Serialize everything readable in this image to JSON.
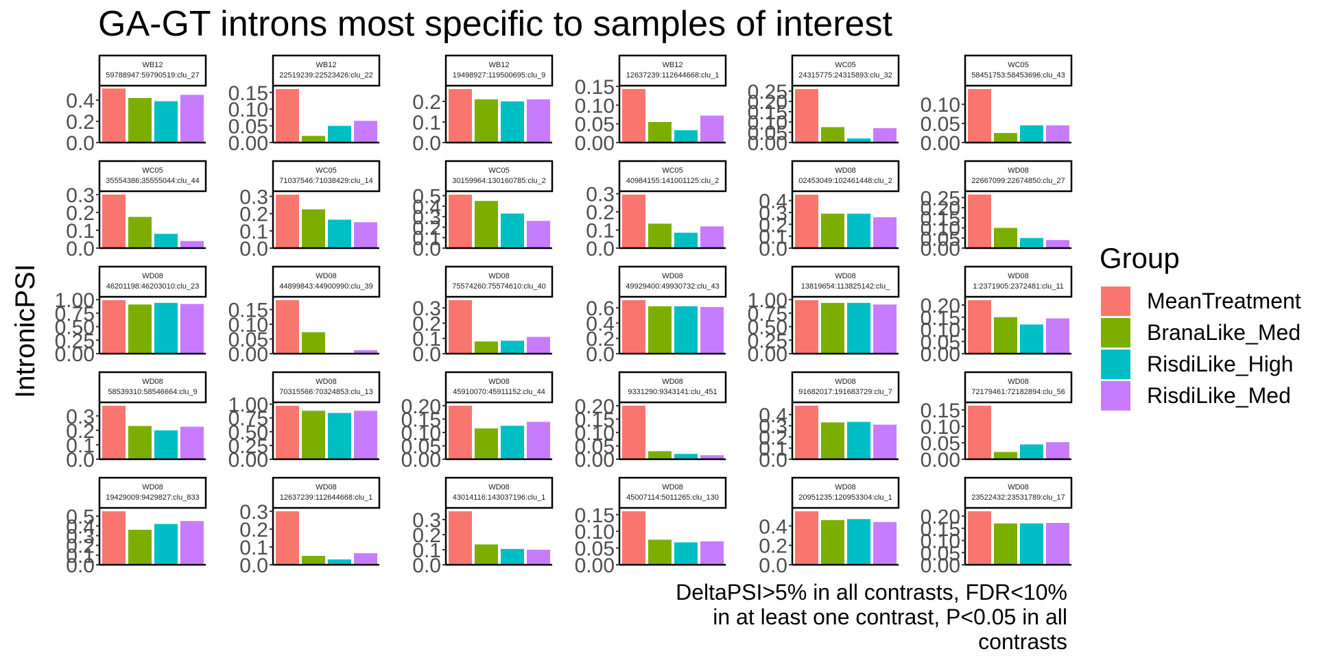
{
  "chart_data": {
    "type": "bar",
    "title": "GA-GT introns most specific to samples of interest",
    "ylabel": "IntronicPSI",
    "xlabel": "",
    "caption_lines": [
      "DeltaPSI>5% in all contrasts, FDR<10%",
      "in at least one contrast, P<0.05 in all",
      "contrasts"
    ],
    "legend": {
      "title": "Group",
      "position": "right",
      "entries": [
        "MeanTreatment",
        "BranaLike_Med",
        "RisdiLike_High",
        "RisdiLike_Med"
      ]
    },
    "colors": [
      "#F8766D",
      "#7CAE00",
      "#00BFC4",
      "#C77CFF"
    ],
    "categories": [
      "MeanTreatment",
      "BranaLike_Med",
      "RisdiLike_High",
      "RisdiLike_Med"
    ],
    "panels": [
      {
        "strip1": "WB12",
        "strip2": "59788947:59790519:clu_27",
        "values": [
          0.51,
          0.42,
          0.39,
          0.45
        ],
        "ticks": [
          "0.0",
          "0.2",
          "0.4"
        ],
        "ylim": [
          0,
          0.53
        ]
      },
      {
        "strip1": "WB12",
        "strip2": "22519239:22523426:clu_22",
        "values": [
          0.16,
          0.02,
          0.05,
          0.065
        ],
        "ticks": [
          "0.00",
          "0.05",
          "0.10",
          "0.15"
        ],
        "ylim": [
          0,
          0.168
        ]
      },
      {
        "strip1": "WB12",
        "strip2": "19498927:119500695:clu_9",
        "values": [
          0.26,
          0.21,
          0.2,
          0.21
        ],
        "ticks": [
          "0.0",
          "0.1",
          "0.2"
        ],
        "ylim": [
          0,
          0.273
        ]
      },
      {
        "strip1": "WB12",
        "strip2": "12637239:112644668:clu_1",
        "values": [
          0.143,
          0.055,
          0.033,
          0.072
        ],
        "ticks": [
          "0.00",
          "0.05",
          "0.10",
          "0.15"
        ],
        "ylim": [
          0,
          0.15
        ]
      },
      {
        "strip1": "WC05",
        "strip2": "24315775:24315893:clu_32",
        "values": [
          0.26,
          0.075,
          0.02,
          0.07
        ],
        "ticks": [
          "0.00",
          "0.05",
          "0.10",
          "0.15",
          "0.20",
          "0.25"
        ],
        "ylim": [
          0,
          0.273
        ]
      },
      {
        "strip1": "WC05",
        "strip2": "58451753:58453696:clu_43",
        "values": [
          0.14,
          0.025,
          0.045,
          0.045
        ],
        "ticks": [
          "0.00",
          "0.05",
          "0.10"
        ],
        "ylim": [
          0,
          0.147
        ]
      },
      {
        "strip1": "WC05",
        "strip2": "35554386:35555044:clu_44",
        "values": [
          0.3,
          0.175,
          0.08,
          0.04
        ],
        "ticks": [
          "0.0",
          "0.1",
          "0.2",
          "0.3"
        ],
        "ylim": [
          0,
          0.315
        ]
      },
      {
        "strip1": "WC05",
        "strip2": "71037546:71038429:clu_14",
        "values": [
          0.31,
          0.225,
          0.165,
          0.15
        ],
        "ticks": [
          "0.0",
          "0.1",
          "0.2",
          "0.3"
        ],
        "ylim": [
          0,
          0.326
        ]
      },
      {
        "strip1": "WC05",
        "strip2": "30159964:130160785:clu_2",
        "values": [
          0.51,
          0.45,
          0.33,
          0.26
        ],
        "ticks": [
          "0.0",
          "0.1",
          "0.2",
          "0.3",
          "0.4",
          "0.5"
        ],
        "ylim": [
          0,
          0.536
        ]
      },
      {
        "strip1": "WC05",
        "strip2": "40984155:141001125:clu_2",
        "values": [
          0.295,
          0.135,
          0.085,
          0.12
        ],
        "ticks": [
          "0.0",
          "0.1",
          "0.2",
          "0.3"
        ],
        "ylim": [
          0,
          0.31
        ]
      },
      {
        "strip1": "WD08",
        "strip2": "02453049:102461448:clu_2",
        "values": [
          0.45,
          0.29,
          0.29,
          0.26
        ],
        "ticks": [
          "0.0",
          "0.1",
          "0.2",
          "0.3",
          "0.4"
        ],
        "ylim": [
          0,
          0.473
        ]
      },
      {
        "strip1": "WD08",
        "strip2": "22667099:22674850:clu_27",
        "values": [
          0.265,
          0.1,
          0.05,
          0.04
        ],
        "ticks": [
          "0.00",
          "0.05",
          "0.10",
          "0.15",
          "0.20",
          "0.25"
        ],
        "ylim": [
          0,
          0.278
        ]
      },
      {
        "strip1": "WD08",
        "strip2": "46201198:46203010:clu_23",
        "values": [
          0.99,
          0.91,
          0.94,
          0.92
        ],
        "ticks": [
          "0.00",
          "0.25",
          "0.50",
          "0.75",
          "1.00"
        ],
        "ylim": [
          0,
          1.04
        ]
      },
      {
        "strip1": "WD08",
        "strip2": "44899843:44900990:clu_39",
        "values": [
          0.182,
          0.073,
          0.0,
          0.012
        ],
        "ticks": [
          "0.00",
          "0.05",
          "0.10",
          "0.15"
        ],
        "ylim": [
          0,
          0.191
        ]
      },
      {
        "strip1": "WD08",
        "strip2": "75574260:75574610:clu_40",
        "values": [
          0.35,
          0.08,
          0.085,
          0.11
        ],
        "ticks": [
          "0.0",
          "0.1",
          "0.2",
          "0.3"
        ],
        "ylim": [
          0,
          0.368
        ]
      },
      {
        "strip1": "WD08",
        "strip2": "49929400:49930732:clu_43",
        "values": [
          0.7,
          0.62,
          0.62,
          0.61
        ],
        "ticks": [
          "0.0",
          "0.2",
          "0.4",
          "0.6"
        ],
        "ylim": [
          0,
          0.735
        ]
      },
      {
        "strip1": "WD08",
        "strip2": "13819654:113825142:clu_",
        "values": [
          0.99,
          0.94,
          0.94,
          0.91
        ],
        "ticks": [
          "0.00",
          "0.25",
          "0.50",
          "0.75",
          "1.00"
        ],
        "ylim": [
          0,
          1.04
        ]
      },
      {
        "strip1": "WD08",
        "strip2": "1:2371905:2372481:clu_11",
        "values": [
          0.22,
          0.15,
          0.12,
          0.145
        ],
        "ticks": [
          "0.00",
          "0.05",
          "0.10",
          "0.15",
          "0.20"
        ],
        "ylim": [
          0,
          0.231
        ]
      },
      {
        "strip1": "WD08",
        "strip2": "58539310:58546664:clu_9",
        "values": [
          0.37,
          0.23,
          0.2,
          0.225
        ],
        "ticks": [
          "0.0",
          "0.1",
          "0.2",
          "0.3"
        ],
        "ylim": [
          0,
          0.389
        ]
      },
      {
        "strip1": "WD08",
        "strip2": "70315566:70324853:clu_13",
        "values": [
          0.97,
          0.88,
          0.84,
          0.88
        ],
        "ticks": [
          "0.00",
          "0.25",
          "0.50",
          "0.75",
          "1.00"
        ],
        "ylim": [
          0,
          1.02
        ]
      },
      {
        "strip1": "WD08",
        "strip2": "45910070:45911152:clu_44",
        "values": [
          0.2,
          0.115,
          0.125,
          0.14
        ],
        "ticks": [
          "0.00",
          "0.05",
          "0.10",
          "0.15",
          "0.20"
        ],
        "ylim": [
          0,
          0.21
        ]
      },
      {
        "strip1": "WD08",
        "strip2": "9331290:9343141:clu_451",
        "values": [
          0.2,
          0.03,
          0.02,
          0.015
        ],
        "ticks": [
          "0.00",
          "0.05",
          "0.10",
          "0.15",
          "0.20"
        ],
        "ylim": [
          0,
          0.21
        ]
      },
      {
        "strip1": "WD08",
        "strip2": "91682017:191683729:clu_7",
        "values": [
          0.48,
          0.33,
          0.335,
          0.31
        ],
        "ticks": [
          "0.0",
          "0.1",
          "0.2",
          "0.3",
          "0.4"
        ],
        "ylim": [
          0,
          0.504
        ]
      },
      {
        "strip1": "WD08",
        "strip2": "72179461:72182894:clu_56",
        "values": [
          0.163,
          0.022,
          0.045,
          0.052
        ],
        "ticks": [
          "0.00",
          "0.05",
          "0.10",
          "0.15"
        ],
        "ylim": [
          0,
          0.171
        ]
      },
      {
        "strip1": "WD08",
        "strip2": "19429009:9429827:clu_833",
        "values": [
          0.55,
          0.36,
          0.42,
          0.45
        ],
        "ticks": [
          "0.0",
          "0.1",
          "0.2",
          "0.3",
          "0.4",
          "0.5"
        ],
        "ylim": [
          0,
          0.578
        ]
      },
      {
        "strip1": "WD08",
        "strip2": "12637239:112644668:clu_1",
        "values": [
          0.3,
          0.05,
          0.03,
          0.065
        ],
        "ticks": [
          "0.0",
          "0.1",
          "0.2",
          "0.3"
        ],
        "ylim": [
          0,
          0.315
        ]
      },
      {
        "strip1": "WD08",
        "strip2": "43014116:143037196:clu_1",
        "values": [
          0.355,
          0.135,
          0.105,
          0.1
        ],
        "ticks": [
          "0.0",
          "0.1",
          "0.2",
          "0.3"
        ],
        "ylim": [
          0,
          0.373
        ]
      },
      {
        "strip1": "WD08",
        "strip2": "45007114:5011265:clu_130",
        "values": [
          0.16,
          0.075,
          0.067,
          0.07
        ],
        "ticks": [
          "0.00",
          "0.05",
          "0.10",
          "0.15"
        ],
        "ylim": [
          0,
          0.168
        ]
      },
      {
        "strip1": "WD08",
        "strip2": "20951235:120953304:clu_1",
        "values": [
          0.55,
          0.46,
          0.47,
          0.44
        ],
        "ticks": [
          "0.0",
          "0.2",
          "0.4"
        ],
        "ylim": [
          0,
          0.578
        ]
      },
      {
        "strip1": "WD08",
        "strip2": "23522432:23531789:clu_17",
        "values": [
          0.22,
          0.17,
          0.17,
          0.172
        ],
        "ticks": [
          "0.00",
          "0.05",
          "0.10",
          "0.15",
          "0.20"
        ],
        "ylim": [
          0,
          0.231
        ]
      }
    ]
  }
}
